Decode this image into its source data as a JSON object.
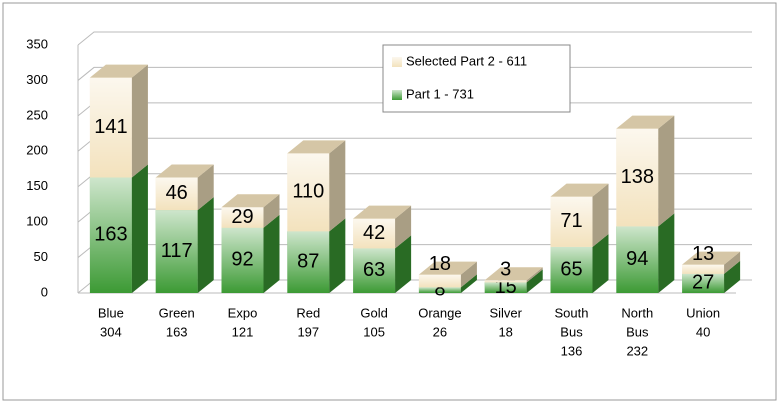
{
  "chart_data": {
    "type": "bar3d_stacked",
    "categories": [
      [
        "Blue",
        "304"
      ],
      [
        "Green",
        "163"
      ],
      [
        "Expo",
        "121"
      ],
      [
        "Red",
        "197"
      ],
      [
        "Gold",
        "105"
      ],
      [
        "Orange",
        "26"
      ],
      [
        "Silver",
        "18"
      ],
      [
        "South",
        "Bus",
        "136"
      ],
      [
        "North",
        "Bus",
        "232"
      ],
      [
        "Union",
        "40"
      ]
    ],
    "series": [
      {
        "name": "Part 1 - 731",
        "color": "#3c9a34",
        "values": [
          163,
          117,
          92,
          87,
          63,
          8,
          15,
          65,
          94,
          27
        ]
      },
      {
        "name": "Selected Part 2 - 611",
        "color": "#f3e2bd",
        "values": [
          141,
          46,
          29,
          110,
          42,
          18,
          3,
          71,
          138,
          13
        ]
      }
    ],
    "ylim": [
      0,
      350
    ],
    "yticks": [
      0,
      50,
      100,
      150,
      200,
      250,
      300,
      350
    ],
    "grid": true,
    "legend": "top"
  }
}
